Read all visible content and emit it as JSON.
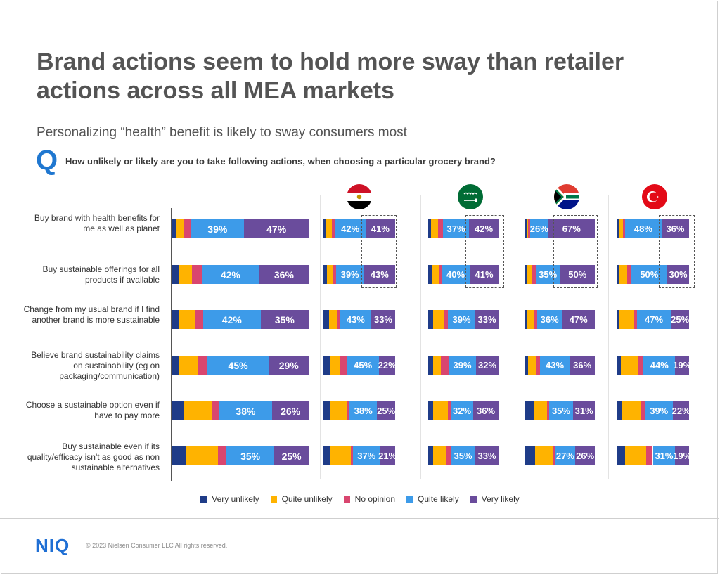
{
  "header": {
    "title": "Brand actions seem to hold more sway than retailer actions across all MEA markets",
    "subtitle": "Personalizing “health” benefit is likely to sway consumers most",
    "q_letter": "Q",
    "question": "How unlikely or likely are you to take following actions, when choosing a particular grocery brand?"
  },
  "footer": {
    "logo": "NIQ",
    "copyright": "© 2023 Nielsen Consumer LLC  All rights reserved."
  },
  "colors": {
    "Very unlikely": "#1f3c88",
    "Quite unlikely": "#ffb300",
    "No opinion": "#d9466f",
    "Quite likely": "#3d9be9",
    "Very likely": "#6a4c9c"
  },
  "flags": [
    "egypt-flag-icon",
    "saudi-arabia-flag-icon",
    "south-africa-flag-icon",
    "turkey-flag-icon"
  ],
  "chart_data": {
    "type": "bar",
    "orientation": "horizontal",
    "stacked": true,
    "categories": [
      "Buy brand with health benefits for me as well as planet",
      "Buy sustainable offerings for all products if available",
      "Change from my usual brand if I find another brand is more sustainable",
      "Believe brand sustainability claims on sustainability (eg on packaging/communication)",
      "Choose a sustainable option even if have to pay more",
      "Buy sustainable even if its quality/efficacy isn't as good as non sustainable alternatives"
    ],
    "series_names": [
      "Very unlikely",
      "Quite unlikely",
      "No opinion",
      "Quite likely",
      "Very likely"
    ],
    "legend_position": "bottom",
    "panels": [
      {
        "name": "",
        "rows": [
          [
            3,
            6,
            5,
            39,
            47
          ],
          [
            5,
            10,
            7,
            42,
            36
          ],
          [
            5,
            12,
            6,
            42,
            35
          ],
          [
            5,
            14,
            7,
            45,
            29
          ],
          [
            9,
            20,
            5,
            38,
            26
          ],
          [
            10,
            24,
            6,
            35,
            25
          ]
        ]
      },
      {
        "name": "",
        "rows": [
          [
            5,
            8,
            4,
            42,
            41
          ],
          [
            6,
            8,
            4,
            39,
            43
          ],
          [
            9,
            11,
            4,
            43,
            33
          ],
          [
            10,
            14,
            9,
            45,
            22
          ],
          [
            11,
            22,
            4,
            38,
            25
          ],
          [
            11,
            28,
            3,
            37,
            21
          ]
        ]
      },
      {
        "name": "",
        "rows": [
          [
            4,
            10,
            7,
            37,
            42
          ],
          [
            5,
            10,
            4,
            40,
            41
          ],
          [
            7,
            15,
            6,
            39,
            33
          ],
          [
            7,
            11,
            11,
            39,
            32
          ],
          [
            7,
            21,
            4,
            32,
            36
          ],
          [
            7,
            18,
            7,
            35,
            33
          ]
        ]
      },
      {
        "name": "",
        "rows": [
          [
            2,
            2,
            3,
            26,
            67
          ],
          [
            3,
            7,
            5,
            35,
            50
          ],
          [
            3,
            9,
            5,
            36,
            47
          ],
          [
            4,
            11,
            6,
            43,
            36
          ],
          [
            12,
            19,
            3,
            35,
            31
          ],
          [
            13,
            24,
            3,
            27,
            26
          ]
        ]
      },
      {
        "name": "",
        "rows": [
          [
            3,
            5,
            3,
            48,
            36
          ],
          [
            4,
            11,
            5,
            50,
            30
          ],
          [
            4,
            20,
            4,
            47,
            25
          ],
          [
            6,
            24,
            7,
            44,
            19
          ],
          [
            7,
            27,
            5,
            39,
            22
          ],
          [
            12,
            29,
            9,
            31,
            19
          ]
        ]
      }
    ],
    "data_labels_shown_for": [
      "Quite likely",
      "Very likely"
    ],
    "highlighted": "dashed boxes around 'Very likely' of the first two actions in each market panel"
  }
}
